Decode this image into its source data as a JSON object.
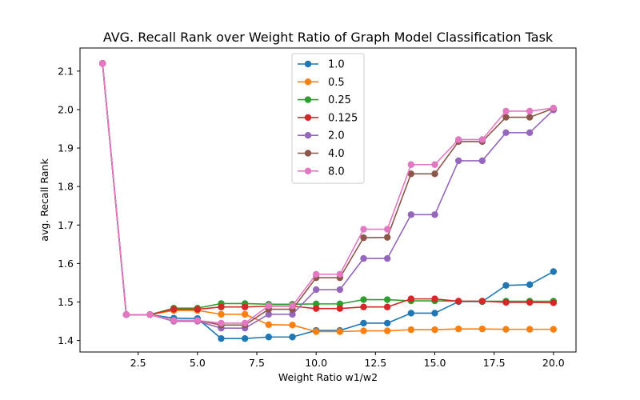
{
  "chart_data": {
    "type": "line",
    "title": "AVG. Recall Rank over Weight Ratio of Graph Model Classification Task",
    "xlabel": "Weight Ratio w1/w2",
    "ylabel": "avg. Recall Rank",
    "xlim": [
      0.05,
      20.95
    ],
    "ylim": [
      1.37,
      2.16
    ],
    "xticks": [
      2.5,
      5.0,
      7.5,
      10.0,
      12.5,
      15.0,
      17.5,
      20.0
    ],
    "xtick_labels": [
      "2.5",
      "5.0",
      "7.5",
      "10.0",
      "12.5",
      "15.0",
      "17.5",
      "20.0"
    ],
    "yticks": [
      1.4,
      1.5,
      1.6,
      1.7,
      1.8,
      1.9,
      2.0,
      2.1
    ],
    "ytick_labels": [
      "1.4",
      "1.5",
      "1.6",
      "1.7",
      "1.8",
      "1.9",
      "2.0",
      "2.1"
    ],
    "grid": false,
    "legend_position": "top-center",
    "x": [
      1,
      2,
      3,
      4,
      5,
      6,
      7,
      8,
      9,
      10,
      11,
      12,
      13,
      14,
      15,
      16,
      17,
      18,
      19,
      20
    ],
    "series": [
      {
        "name": "1.0",
        "color": "#1f77b4",
        "values": [
          2.12,
          1.467,
          1.467,
          1.458,
          1.457,
          1.405,
          1.405,
          1.409,
          1.409,
          1.426,
          1.426,
          1.445,
          1.445,
          1.471,
          1.471,
          1.501,
          1.501,
          1.543,
          1.545,
          1.579
        ]
      },
      {
        "name": "0.5",
        "color": "#ff7f0e",
        "values": [
          2.12,
          1.467,
          1.467,
          1.478,
          1.478,
          1.468,
          1.468,
          1.441,
          1.44,
          1.423,
          1.423,
          1.425,
          1.425,
          1.428,
          1.428,
          1.43,
          1.43,
          1.429,
          1.429,
          1.429
        ]
      },
      {
        "name": "0.25",
        "color": "#2ca02c",
        "values": [
          2.12,
          1.467,
          1.467,
          1.484,
          1.484,
          1.496,
          1.496,
          1.494,
          1.494,
          1.495,
          1.495,
          1.506,
          1.506,
          1.503,
          1.503,
          1.502,
          1.502,
          1.502,
          1.502,
          1.502
        ]
      },
      {
        "name": "0.125",
        "color": "#d62728",
        "values": [
          2.12,
          1.467,
          1.467,
          1.481,
          1.481,
          1.487,
          1.487,
          1.489,
          1.489,
          1.483,
          1.483,
          1.487,
          1.487,
          1.508,
          1.508,
          1.502,
          1.502,
          1.499,
          1.499,
          1.498
        ]
      },
      {
        "name": "2.0",
        "color": "#9467bd",
        "values": [
          2.12,
          1.467,
          1.467,
          1.45,
          1.45,
          1.432,
          1.432,
          1.468,
          1.468,
          1.532,
          1.532,
          1.613,
          1.613,
          1.727,
          1.727,
          1.867,
          1.867,
          1.94,
          1.94,
          1.999
        ]
      },
      {
        "name": "4.0",
        "color": "#8c564b",
        "values": [
          2.12,
          1.467,
          1.467,
          1.452,
          1.452,
          1.44,
          1.44,
          1.481,
          1.481,
          1.563,
          1.563,
          1.667,
          1.668,
          1.833,
          1.833,
          1.917,
          1.917,
          1.98,
          1.98,
          2.003
        ]
      },
      {
        "name": "8.0",
        "color": "#e377c2",
        "values": [
          2.12,
          1.467,
          1.467,
          1.452,
          1.452,
          1.445,
          1.445,
          1.49,
          1.49,
          1.572,
          1.572,
          1.689,
          1.689,
          1.857,
          1.857,
          1.922,
          1.922,
          1.996,
          1.996,
          2.004
        ]
      }
    ]
  }
}
